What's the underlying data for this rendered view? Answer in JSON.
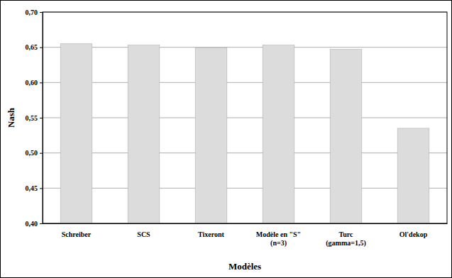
{
  "chart_data": {
    "type": "bar",
    "categories": [
      "Schreiber",
      "SCS",
      "Tixeront",
      "Modèle en \"S\"\n(n=3)",
      "Turc\n(gamma=1,5)",
      "Ol'dekop"
    ],
    "values": [
      0.655,
      0.653,
      0.649,
      0.653,
      0.647,
      0.535
    ],
    "color": "#dcdcdc",
    "x_label": "Modèles",
    "y_label": "Nash",
    "ylim": [
      0.4,
      0.7
    ],
    "yticks": [
      {
        "value": 0.4,
        "label": "0,40"
      },
      {
        "value": 0.45,
        "label": "0,45"
      },
      {
        "value": 0.5,
        "label": "0,50"
      },
      {
        "value": 0.55,
        "label": "0,55"
      },
      {
        "value": 0.6,
        "label": "0,60"
      },
      {
        "value": 0.65,
        "label": "0,65"
      },
      {
        "value": 0.7,
        "label": "0,70"
      }
    ],
    "grid": true
  }
}
